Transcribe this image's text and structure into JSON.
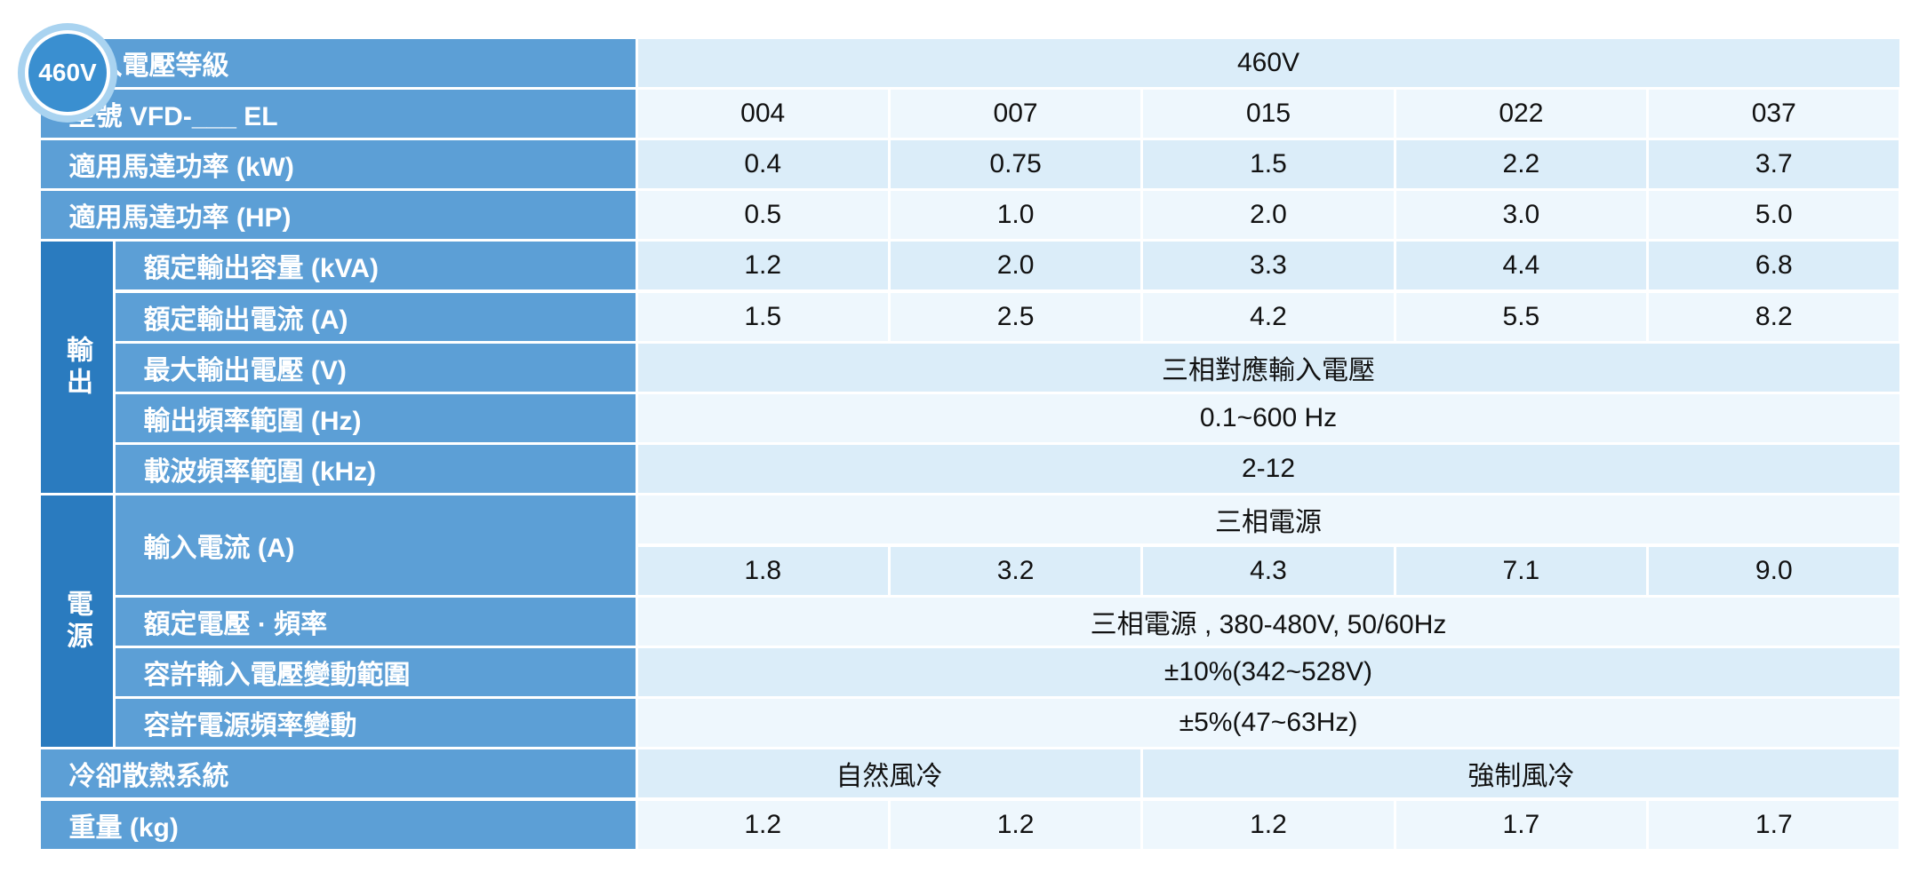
{
  "badge": "460V",
  "top_rows": [
    {
      "label": "輸入電壓等級",
      "cells": [
        "460V"
      ]
    },
    {
      "label": "型號 VFD-___ EL",
      "cells": [
        "004",
        "007",
        "015",
        "022",
        "037"
      ]
    },
    {
      "label": "適用馬達功率 (kW)",
      "cells": [
        "0.4",
        "0.75",
        "1.5",
        "2.2",
        "3.7"
      ]
    },
    {
      "label": "適用馬達功率 (HP)",
      "cells": [
        "0.5",
        "1.0",
        "2.0",
        "3.0",
        "5.0"
      ]
    }
  ],
  "groups": [
    {
      "label": "輸出",
      "rows": [
        {
          "label": "額定輸出容量 (kVA)",
          "cells": [
            "1.2",
            "2.0",
            "3.3",
            "4.4",
            "6.8"
          ]
        },
        {
          "label": "額定輸出電流 (A)",
          "cells": [
            "1.5",
            "2.5",
            "4.2",
            "5.5",
            "8.2"
          ]
        },
        {
          "label": "最大輸出電壓 (V)",
          "cells": [
            "三相對應輸入電壓"
          ]
        },
        {
          "label": "輸出頻率範圍 (Hz)",
          "cells": [
            "0.1~600 Hz"
          ]
        },
        {
          "label": "載波頻率範圍 (kHz)",
          "cells": [
            "2-12"
          ]
        }
      ]
    },
    {
      "label": "電源",
      "rows": [
        {
          "label": "輸入電流 (A)",
          "lines": [
            [
              "三相電源"
            ],
            [
              "1.8",
              "3.2",
              "4.3",
              "7.1",
              "9.0"
            ]
          ]
        },
        {
          "label": "額定電壓 · 頻率",
          "cells": [
            "三相電源 , 380-480V, 50/60Hz"
          ]
        },
        {
          "label": "容許輸入電壓變動範圍",
          "cells": [
            "±10%(342~528V)"
          ]
        },
        {
          "label": "容許電源頻率變動",
          "cells": [
            "±5%(47~63Hz)"
          ]
        }
      ]
    }
  ],
  "bottom_rows": [
    {
      "label": "冷卻散熱系統",
      "cells": [
        "自然風冷",
        "強制風冷"
      ]
    },
    {
      "label": "重量 (kg)",
      "cells": [
        "1.2",
        "1.2",
        "1.2",
        "1.7",
        "1.7"
      ]
    }
  ]
}
